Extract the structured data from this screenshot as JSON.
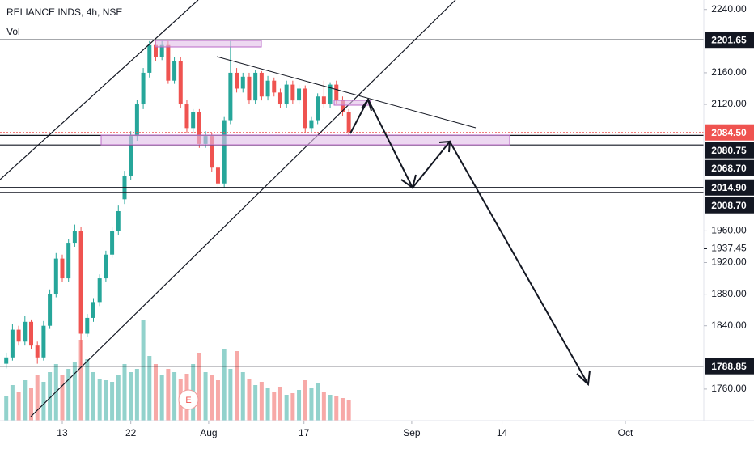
{
  "chart_data": {
    "type": "candlestick",
    "title": "RELIANCE INDS, 4h, NSE",
    "subtitle": "Vol",
    "xlim": [
      -1,
      112
    ],
    "xticks": [
      {
        "value": 9,
        "label": "13"
      },
      {
        "value": 20,
        "label": "22"
      },
      {
        "value": 32.5,
        "label": "Aug"
      },
      {
        "value": 47.8,
        "label": "17"
      },
      {
        "value": 65.1,
        "label": "Sep"
      },
      {
        "value": 79.6,
        "label": "14"
      },
      {
        "value": 99.4,
        "label": "Oct"
      }
    ],
    "ylim": [
      1720,
      2252
    ],
    "yticks": [
      {
        "value": 2240,
        "label": "2240.00"
      },
      {
        "value": 2160,
        "label": "2160.00"
      },
      {
        "value": 2120,
        "label": "2120.00"
      },
      {
        "value": 1960,
        "label": "1960.00"
      },
      {
        "value": 1920,
        "label": "1920.00"
      },
      {
        "value": 1880,
        "label": "1880.00"
      },
      {
        "value": 1840,
        "label": "1840.00"
      },
      {
        "value": 1760,
        "label": "1760.00"
      }
    ],
    "up_color": "#26a69a",
    "down_color": "#ef5350",
    "candles": {
      "open": [
        1792,
        1800,
        1835,
        1820,
        1845,
        1815,
        1800,
        1840,
        1880,
        1925,
        1900,
        1945,
        1960,
        1830,
        1850,
        1870,
        1900,
        1930,
        1960,
        2000,
        2030,
        2080,
        2120,
        2160,
        2195,
        2180,
        2195,
        2150,
        2175,
        2120,
        2090,
        2110,
        2070,
        2080,
        2040,
        2020,
        2100,
        2160,
        2140,
        2155,
        2125,
        2160,
        2130,
        2150,
        2135,
        2120,
        2145,
        2125,
        2140,
        2090,
        2100,
        2130,
        2120,
        2145,
        2125,
        2110
      ],
      "high": [
        1806,
        1842,
        1840,
        1852,
        1848,
        1820,
        1846,
        1886,
        1932,
        1930,
        1950,
        1968,
        1965,
        1855,
        1875,
        1905,
        1935,
        1965,
        1992,
        2036,
        2086,
        2126,
        2166,
        2200,
        2202,
        2200,
        2200,
        2180,
        2180,
        2126,
        2114,
        2114,
        2086,
        2084,
        2044,
        2104,
        2200,
        2166,
        2160,
        2160,
        2164,
        2162,
        2156,
        2154,
        2140,
        2150,
        2150,
        2145,
        2144,
        2104,
        2134,
        2150,
        2148,
        2150,
        2130,
        2114
      ],
      "low": [
        1786,
        1796,
        1815,
        1815,
        1810,
        1792,
        1796,
        1836,
        1876,
        1895,
        1896,
        1940,
        1790,
        1826,
        1845,
        1865,
        1896,
        1926,
        1955,
        1994,
        2024,
        2074,
        2114,
        2154,
        2175,
        2176,
        2146,
        2146,
        2115,
        2084,
        2084,
        2065,
        2065,
        2035,
        2008,
        2015,
        2095,
        2135,
        2135,
        2120,
        2120,
        2125,
        2125,
        2130,
        2115,
        2116,
        2120,
        2120,
        2085,
        2085,
        2095,
        2115,
        2115,
        2120,
        2105,
        2080
      ],
      "close": [
        1800,
        1835,
        1820,
        1845,
        1815,
        1800,
        1840,
        1880,
        1925,
        1900,
        1945,
        1960,
        1830,
        1850,
        1870,
        1900,
        1930,
        1960,
        1985,
        2030,
        2080,
        2120,
        2160,
        2195,
        2180,
        2195,
        2150,
        2175,
        2120,
        2090,
        2110,
        2070,
        2080,
        2040,
        2020,
        2100,
        2160,
        2140,
        2155,
        2125,
        2160,
        2130,
        2150,
        2135,
        2120,
        2145,
        2125,
        2140,
        2090,
        2100,
        2130,
        2120,
        2145,
        2125,
        2110,
        2085
      ]
    },
    "volume": [
      1.5,
      2.2,
      1.8,
      2.5,
      2,
      2.8,
      2.4,
      3,
      3.5,
      2.8,
      3.2,
      3.6,
      5,
      3.8,
      3,
      2.6,
      2.5,
      2.4,
      2.8,
      3.5,
      3,
      3.2,
      6.2,
      4,
      3.5,
      2.8,
      3.2,
      3,
      2.6,
      2.9,
      3.5,
      4.2,
      3,
      2.8,
      2.5,
      4.4,
      3.2,
      4.3,
      3,
      2.6,
      2.2,
      2.4,
      2,
      1.8,
      2.1,
      1.6,
      1.7,
      1.9,
      2.5,
      2,
      2.3,
      1.8,
      1.6,
      1.5,
      1.4,
      1.3
    ],
    "volume_lim": [
      0,
      10
    ],
    "levels": [
      {
        "value": 2201.65,
        "style": "box"
      },
      {
        "value": 2084.5,
        "label": "2084.50",
        "style": "current"
      },
      {
        "value": 2080.75,
        "style": "box"
      },
      {
        "value": 2068.7,
        "label": "2068.70",
        "style": "box"
      },
      {
        "value": 2014.9,
        "label": "2014.90",
        "style": "box"
      },
      {
        "value": 2008.7,
        "label": "2008.70",
        "style": "box"
      },
      {
        "value": 1937.45,
        "style": "plain"
      },
      {
        "value": 1788.85,
        "style": "box"
      }
    ]
  }
}
